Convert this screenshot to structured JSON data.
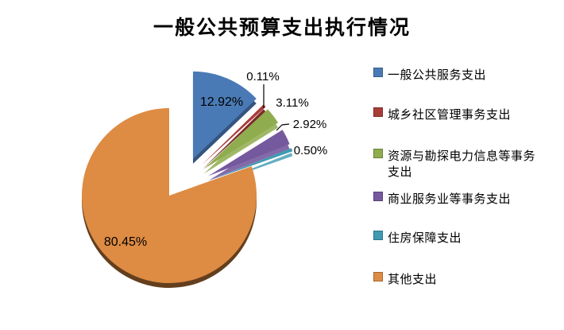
{
  "title": "一般公共预算支出执行情况",
  "background_color": "#FFFFFF",
  "text_color": "#000000",
  "chart_data": {
    "type": "pie",
    "title": "一般公共预算支出执行情况",
    "style": "exploded-3d",
    "legend_position": "right",
    "grid": false,
    "slices": [
      {
        "label": "一般公共服务支出",
        "value": 12.92,
        "display": "12.92%",
        "color": "#4A7AB5",
        "label_placement": "inside"
      },
      {
        "label": "城乡社区管理事务支出",
        "value": 0.11,
        "display": "0.11%",
        "color": "#A83C39",
        "label_placement": "outside"
      },
      {
        "label": "资源与勘探电力信息等事务支出",
        "value": 3.11,
        "display": "3.11%",
        "color": "#8FAC4E",
        "label_placement": "outside"
      },
      {
        "label": "商业服务业等事务支出",
        "value": 2.92,
        "display": "2.92%",
        "color": "#75599E",
        "label_placement": "outside"
      },
      {
        "label": "住房保障支出",
        "value": 0.5,
        "display": "0.50%",
        "color": "#3F9AB2",
        "label_placement": "outside"
      },
      {
        "label": "其他支出",
        "value": 80.45,
        "display": "80.45%",
        "color": "#DE8B43",
        "label_placement": "inside"
      }
    ]
  }
}
